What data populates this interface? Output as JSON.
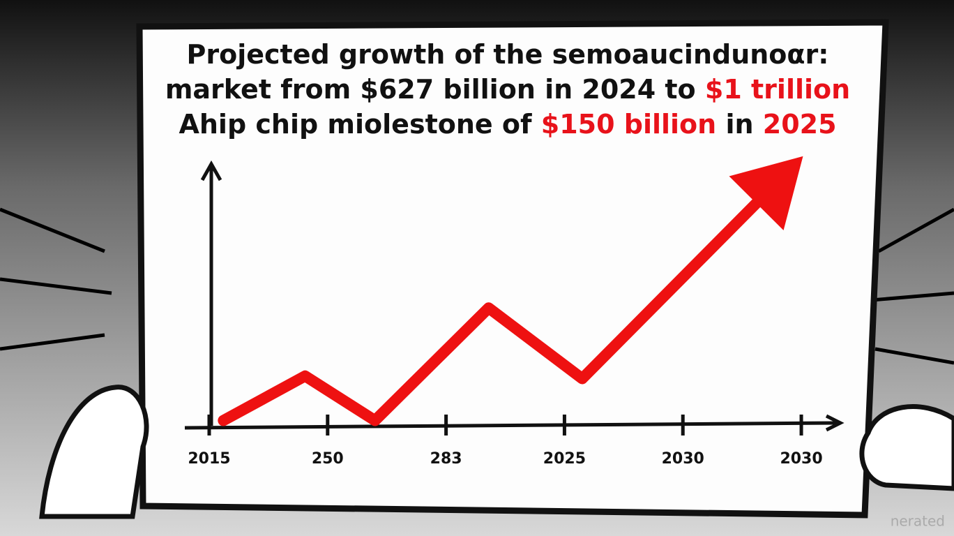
{
  "chart_data": {
    "type": "line",
    "title_lines": [
      [
        {
          "text": "Projected growth of the semoaucindunoαr:",
          "color": "#111111"
        }
      ],
      [
        {
          "text": "market from $627 billion in 2024 to ",
          "color": "#111111"
        },
        {
          "text": "$1 trillion",
          "color": "#e8121a"
        }
      ],
      [
        {
          "text": "Ahip chip miolestone of ",
          "color": "#111111"
        },
        {
          "text": "$150 billion",
          "color": "#e8121a"
        },
        {
          "text": " in ",
          "color": "#111111"
        },
        {
          "text": "2025",
          "color": "#e8121a"
        }
      ]
    ],
    "xlim": [
      -0.1,
      5.3
    ],
    "xticks": [
      {
        "value": 0,
        "label": "2015"
      },
      {
        "value": 1,
        "label": "250"
      },
      {
        "value": 2,
        "label": "283"
      },
      {
        "value": 3,
        "label": "2025"
      },
      {
        "value": 4,
        "label": "2030"
      },
      {
        "value": 5,
        "label": "2030"
      }
    ],
    "ylim": [
      0,
      100
    ],
    "series": [
      {
        "color": "#ee1111",
        "x": [
          0.12,
          0.81,
          1.4,
          2.36,
          3.15,
          4.62
        ],
        "values": [
          2,
          19,
          2,
          45,
          18,
          85
        ]
      }
    ],
    "watermark": "nerated"
  }
}
